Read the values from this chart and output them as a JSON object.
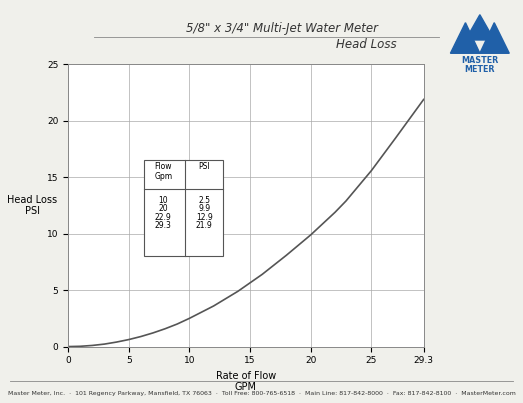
{
  "title_line1": "5/8\" x 3/4\" Multi-Jet Water Meter",
  "title_line2": "Head Loss",
  "xlabel": "Rate of Flow\nGPM",
  "ylabel": "Head Loss\nPSI",
  "footer": "Master Meter, Inc.  ·  101 Regency Parkway, Mansfield, TX 76063  ·  Toll Free: 800-765-6518  ·  Main Line: 817-842-8000  ·  Fax: 817-842-8100  ·  MasterMeter.com",
  "xlim": [
    0,
    29.3
  ],
  "ylim": [
    0,
    25
  ],
  "xticks": [
    0,
    5,
    10,
    15,
    20,
    25,
    29.3
  ],
  "yticks": [
    0,
    5,
    10,
    15,
    20,
    25
  ],
  "curve_flow": [
    0,
    1,
    2,
    3,
    4,
    5,
    6,
    7,
    8,
    9,
    10,
    12,
    14,
    16,
    18,
    20,
    22,
    22.9,
    25,
    27,
    29.3
  ],
  "curve_psi": [
    0,
    0.025,
    0.1,
    0.22,
    0.4,
    0.62,
    0.89,
    1.21,
    1.58,
    2.0,
    2.5,
    3.6,
    4.9,
    6.4,
    8.1,
    9.9,
    11.9,
    12.9,
    15.6,
    18.5,
    21.9
  ],
  "table_flow": [
    "10",
    "20",
    "22.9",
    "29.3"
  ],
  "table_psi": [
    "2.5",
    "9.9",
    "12.9",
    "21.9"
  ],
  "bg_color": "#f0f0eb",
  "plot_bg": "#ffffff",
  "line_color": "#555555",
  "grid_color": "#aaaaaa",
  "logo_color": "#2060a8",
  "logo_bg": "#dcdcd4",
  "title_color": "#333333",
  "tick_fontsize": 6.5,
  "label_fontsize": 7.0,
  "title_fontsize": 8.5,
  "footer_fontsize": 4.5
}
